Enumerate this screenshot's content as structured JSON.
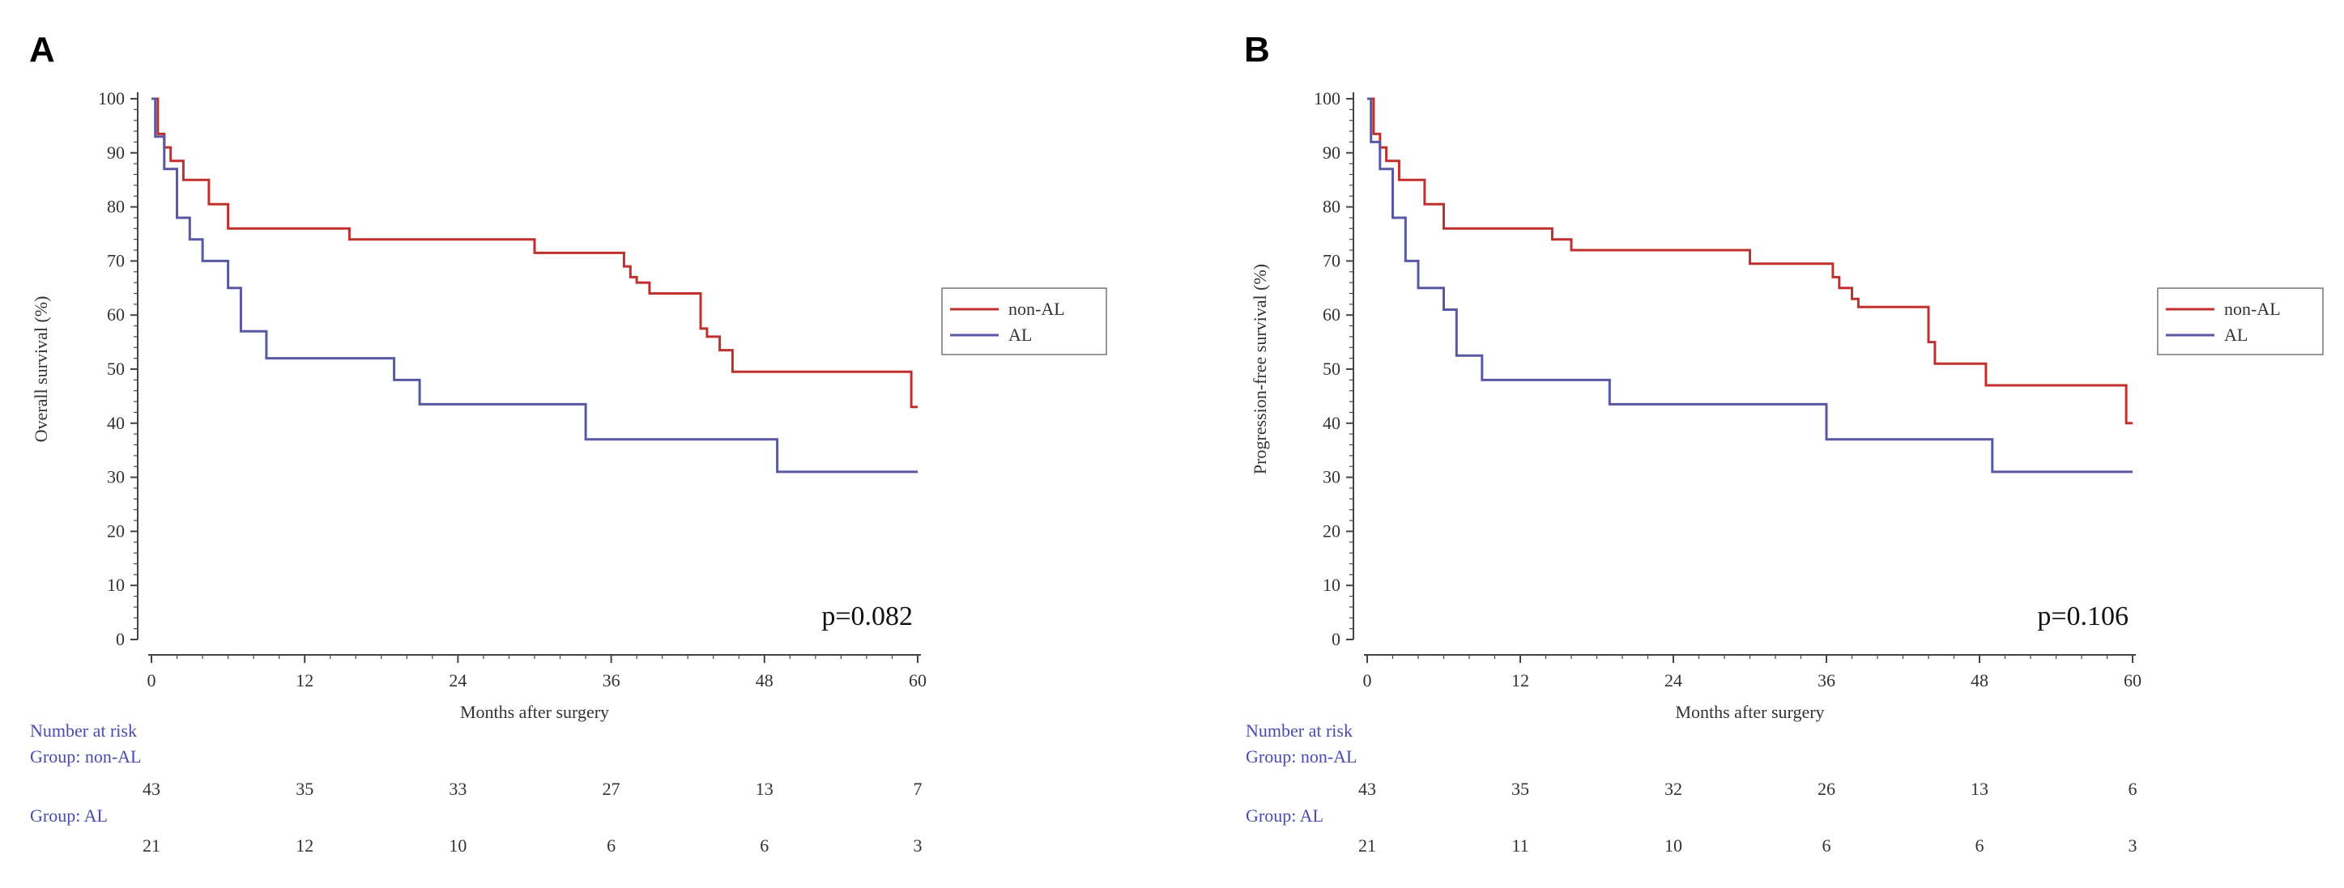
{
  "chart_data": [
    {
      "type": "line",
      "panel_label": "A",
      "title": "",
      "xlabel": "Months after surgery",
      "ylabel": "Overall survival (%)",
      "xlim": [
        0,
        60
      ],
      "ylim": [
        0,
        100
      ],
      "x_ticks": [
        "0",
        "12",
        "24",
        "36",
        "48",
        "60"
      ],
      "y_ticks": [
        "0",
        "10",
        "20",
        "30",
        "40",
        "50",
        "60",
        "70",
        "80",
        "90",
        "100"
      ],
      "p_value": "p=0.082",
      "legend_position": "right",
      "series": [
        {
          "name": "non-AL",
          "color": "#c0302c",
          "x": [
            0,
            0.5,
            1,
            1.5,
            2.5,
            4.5,
            6,
            15.5,
            30,
            37,
            37.5,
            38,
            39,
            43,
            43.5,
            44.5,
            45.5,
            59.5,
            60
          ],
          "y": [
            100,
            93.5,
            91,
            88.5,
            85,
            80.5,
            76,
            74,
            71.5,
            69,
            67,
            66,
            64,
            57.5,
            56,
            53.5,
            49.5,
            43,
            43
          ]
        },
        {
          "name": "AL",
          "color": "#5858a4",
          "x": [
            0,
            0.3,
            1,
            2,
            3,
            4,
            6,
            7,
            9,
            19,
            21,
            34,
            49,
            60
          ],
          "y": [
            100,
            93,
            87,
            78,
            74,
            70,
            65,
            57,
            52,
            48,
            43.5,
            37,
            31,
            31
          ]
        }
      ],
      "risk_table": {
        "header": "Number at risk",
        "times": [
          0,
          12,
          24,
          36,
          48,
          60
        ],
        "groups": [
          {
            "label": "Group: non-AL",
            "counts": [
              "43",
              "35",
              "33",
              "27",
              "13",
              "7"
            ]
          },
          {
            "label": "Group: AL",
            "counts": [
              "21",
              "12",
              "10",
              "6",
              "6",
              "3"
            ]
          }
        ]
      }
    },
    {
      "type": "line",
      "panel_label": "B",
      "title": "",
      "xlabel": "Months after surgery",
      "ylabel": "Progression-free survival (%)",
      "xlim": [
        0,
        60
      ],
      "ylim": [
        0,
        100
      ],
      "x_ticks": [
        "0",
        "12",
        "24",
        "36",
        "48",
        "60"
      ],
      "y_ticks": [
        "0",
        "10",
        "20",
        "30",
        "40",
        "50",
        "60",
        "70",
        "80",
        "90",
        "100"
      ],
      "p_value": "p=0.106",
      "legend_position": "right",
      "series": [
        {
          "name": "non-AL",
          "color": "#c0302c",
          "x": [
            0,
            0.5,
            1,
            1.5,
            2.5,
            4.5,
            6,
            14.5,
            16,
            30,
            36.5,
            37,
            38,
            38.5,
            44,
            44.5,
            46,
            48.5,
            59.5,
            60
          ],
          "y": [
            100,
            93.5,
            91,
            88.5,
            85,
            80.5,
            76,
            74,
            72,
            69.5,
            67,
            65,
            63,
            61.5,
            55,
            51,
            51,
            47,
            40,
            40
          ]
        },
        {
          "name": "AL",
          "color": "#5858a4",
          "x": [
            0,
            0.3,
            1,
            2,
            3,
            4,
            6,
            7,
            9,
            19,
            36,
            49,
            60
          ],
          "y": [
            100,
            92,
            87,
            78,
            70,
            65,
            61,
            52.5,
            48,
            43.5,
            37,
            31,
            31
          ]
        }
      ],
      "risk_table": {
        "header": "Number at risk",
        "times": [
          0,
          12,
          24,
          36,
          48,
          60
        ],
        "groups": [
          {
            "label": "Group: non-AL",
            "counts": [
              "43",
              "35",
              "32",
              "26",
              "13",
              "6"
            ]
          },
          {
            "label": "Group: AL",
            "counts": [
              "21",
              "11",
              "10",
              "6",
              "6",
              "3"
            ]
          }
        ]
      }
    }
  ],
  "colors": {
    "axis": "#444444",
    "risk_label": "#4a4ab0",
    "risk_count": "#333333"
  }
}
